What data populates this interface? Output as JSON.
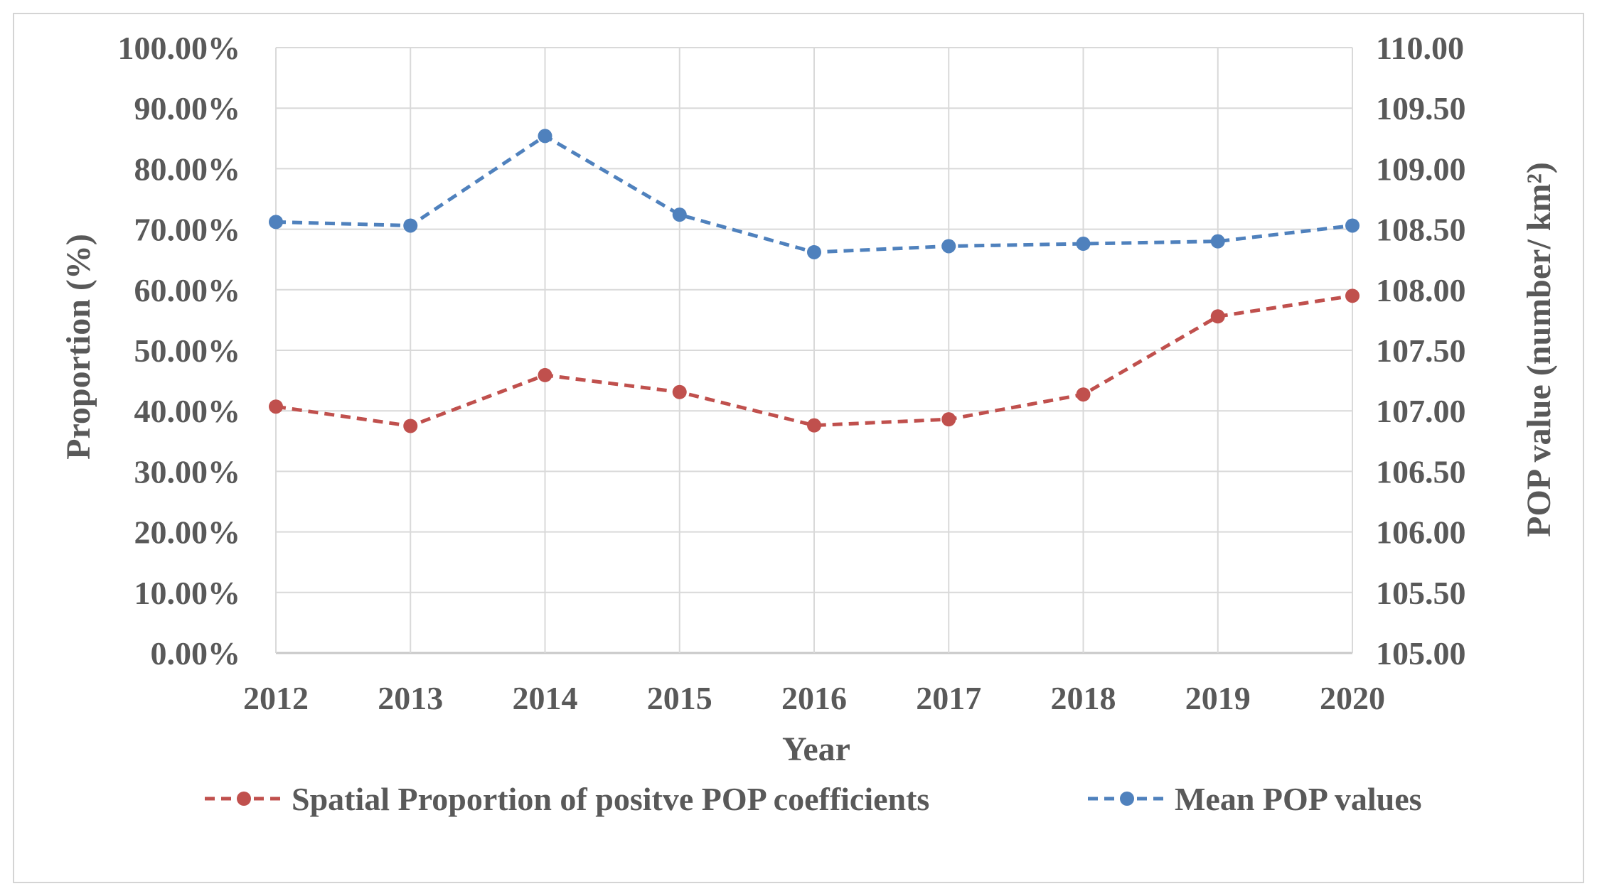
{
  "chart_data": {
    "type": "line",
    "title": "",
    "xlabel": "Year",
    "ylabel_left": "Proportion (%)",
    "ylabel_right": "POP value (number/ km²)",
    "categories": [
      "2012",
      "2013",
      "2014",
      "2015",
      "2016",
      "2017",
      "2018",
      "2019",
      "2020"
    ],
    "y_left": {
      "lim": [
        0,
        100
      ],
      "ticks": [
        0,
        10,
        20,
        30,
        40,
        50,
        60,
        70,
        80,
        90,
        100
      ],
      "tick_labels": [
        "0.00%",
        "10.00%",
        "20.00%",
        "30.00%",
        "40.00%",
        "50.00%",
        "60.00%",
        "70.00%",
        "80.00%",
        "90.00%",
        "100.00%"
      ]
    },
    "y_right": {
      "lim": [
        105,
        110
      ],
      "ticks": [
        105,
        105.5,
        106,
        106.5,
        107,
        107.5,
        108,
        108.5,
        109,
        109.5,
        110
      ],
      "tick_labels": [
        "105.00",
        "105.50",
        "106.00",
        "106.50",
        "107.00",
        "107.50",
        "108.00",
        "108.50",
        "109.00",
        "109.50",
        "110.00"
      ]
    },
    "series": [
      {
        "name": "Spatial Proportion of positve POP coefficients",
        "axis": "left",
        "color": "#c0504d",
        "line_style": "dashed",
        "marker": "circle",
        "values": [
          40.7,
          37.5,
          45.9,
          43.1,
          37.6,
          38.6,
          42.7,
          55.6,
          59.0
        ]
      },
      {
        "name": "Mean POP values",
        "axis": "right",
        "color": "#4f81bd",
        "line_style": "dashed",
        "marker": "circle",
        "values": [
          108.56,
          108.53,
          109.27,
          108.62,
          108.31,
          108.36,
          108.38,
          108.4,
          108.53
        ]
      }
    ],
    "grid": true,
    "legend_position": "bottom"
  }
}
